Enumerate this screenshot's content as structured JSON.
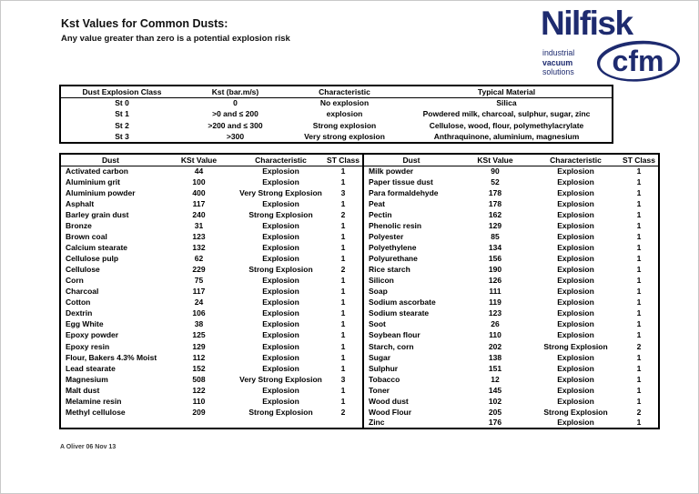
{
  "page": {
    "title": "Kst Values for Common Dusts:",
    "subtitle": "Any value greater than zero is a potential explosion risk",
    "footer": "A Oliver  06 Nov 13"
  },
  "logo": {
    "brand": "Nilfisk",
    "tagline_line1": "industrial",
    "tagline_line2": "vacuum",
    "tagline_line3": "solutions",
    "sub_brand": "cfm",
    "brand_color": "#1e2b6f"
  },
  "class_table": {
    "headers": [
      "Dust Explosion Class",
      "Kst (bar.m/s)",
      "Characteristic",
      "Typical Material"
    ],
    "rows": [
      [
        "St 0",
        "0",
        "No explosion",
        "Silica"
      ],
      [
        "St 1",
        ">0 and ≤ 200",
        "explosion",
        "Powdered milk, charcoal, sulphur, sugar, zinc"
      ],
      [
        "St 2",
        ">200 and ≤ 300",
        "Strong explosion",
        "Cellulose, wood, flour, polymethylacrylate"
      ],
      [
        "St 3",
        ">300",
        "Very strong explosion",
        "Anthraquinone, aluminium, magnesium"
      ]
    ]
  },
  "dust_table": {
    "headers": [
      "Dust",
      "KSt Value",
      "Characteristic",
      "ST Class"
    ],
    "left_rows": [
      [
        "Activated carbon",
        "44",
        "Explosion",
        "1"
      ],
      [
        "Aluminium grit",
        "100",
        "Explosion",
        "1"
      ],
      [
        "Aluminium powder",
        "400",
        "Very Strong Explosion",
        "3"
      ],
      [
        "Asphalt",
        "117",
        "Explosion",
        "1"
      ],
      [
        "Barley grain dust",
        "240",
        "Strong Explosion",
        "2"
      ],
      [
        "Bronze",
        "31",
        "Explosion",
        "1"
      ],
      [
        "Brown coal",
        "123",
        "Explosion",
        "1"
      ],
      [
        "Calcium stearate",
        "132",
        "Explosion",
        "1"
      ],
      [
        "Cellulose pulp",
        "62",
        "Explosion",
        "1"
      ],
      [
        "Cellulose",
        "229",
        "Strong Explosion",
        "2"
      ],
      [
        "Corn",
        "75",
        "Explosion",
        "1"
      ],
      [
        "Charcoal",
        "117",
        "Explosion",
        "1"
      ],
      [
        "Cotton",
        "24",
        "Explosion",
        "1"
      ],
      [
        "Dextrin",
        "106",
        "Explosion",
        "1"
      ],
      [
        "Egg White",
        "38",
        "Explosion",
        "1"
      ],
      [
        "Epoxy powder",
        "125",
        "Explosion",
        "1"
      ],
      [
        "Epoxy resin",
        "129",
        "Explosion",
        "1"
      ],
      [
        "Flour, Bakers 4.3% Moist",
        "112",
        "Explosion",
        "1"
      ],
      [
        "Lead stearate",
        "152",
        "Explosion",
        "1"
      ],
      [
        "Magnesium",
        "508",
        "Very Strong Explosion",
        "3"
      ],
      [
        "Malt dust",
        "122",
        "Explosion",
        "1"
      ],
      [
        "Melamine resin",
        "110",
        "Explosion",
        "1"
      ],
      [
        "Methyl cellulose",
        "209",
        "Strong Explosion",
        "2"
      ]
    ],
    "right_rows": [
      [
        "Milk powder",
        "90",
        "Explosion",
        "1"
      ],
      [
        "Paper tissue dust",
        "52",
        "Explosion",
        "1"
      ],
      [
        "Para formaldehyde",
        "178",
        "Explosion",
        "1"
      ],
      [
        "Peat",
        "178",
        "Explosion",
        "1"
      ],
      [
        "Pectin",
        "162",
        "Explosion",
        "1"
      ],
      [
        "Phenolic resin",
        "129",
        "Explosion",
        "1"
      ],
      [
        "Polyester",
        "85",
        "Explosion",
        "1"
      ],
      [
        "Polyethylene",
        "134",
        "Explosion",
        "1"
      ],
      [
        "Polyurethane",
        "156",
        "Explosion",
        "1"
      ],
      [
        "Rice starch",
        "190",
        "Explosion",
        "1"
      ],
      [
        "Silicon",
        "126",
        "Explosion",
        "1"
      ],
      [
        "Soap",
        "111",
        "Explosion",
        "1"
      ],
      [
        "Sodium ascorbate",
        "119",
        "Explosion",
        "1"
      ],
      [
        "Sodium stearate",
        "123",
        "Explosion",
        "1"
      ],
      [
        "Soot",
        "26",
        "Explosion",
        "1"
      ],
      [
        "Soybean flour",
        "110",
        "Explosion",
        "1"
      ],
      [
        "Starch, corn",
        "202",
        "Strong Explosion",
        "2"
      ],
      [
        "Sugar",
        "138",
        "Explosion",
        "1"
      ],
      [
        "Sulphur",
        "151",
        "Explosion",
        "1"
      ],
      [
        "Tobacco",
        "12",
        "Explosion",
        "1"
      ],
      [
        "Toner",
        "145",
        "Explosion",
        "1"
      ],
      [
        "Wood dust",
        "102",
        "Explosion",
        "1"
      ],
      [
        "Wood Flour",
        "205",
        "Strong Explosion",
        "2"
      ],
      [
        "Zinc",
        "176",
        "Explosion",
        "1"
      ]
    ]
  }
}
